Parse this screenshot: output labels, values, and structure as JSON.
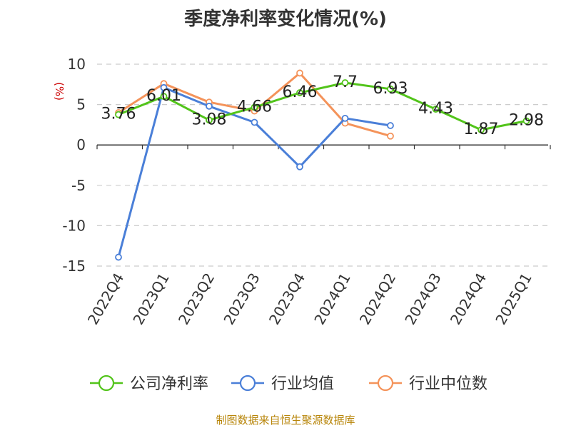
{
  "chart_data": {
    "type": "line",
    "title": "季度净利率变化情况(%)",
    "ylabel": "(%)",
    "xlabel": "",
    "ylim": [
      -15,
      10
    ],
    "yticks": [
      10,
      5,
      0,
      -5,
      -10,
      -15
    ],
    "grid": true,
    "legend_position": "bottom",
    "categories": [
      "2022Q4",
      "2023Q1",
      "2023Q2",
      "2023Q3",
      "2023Q4",
      "2024Q1",
      "2024Q2",
      "2024Q3",
      "2024Q4",
      "2025Q1"
    ],
    "series": [
      {
        "name": "公司净利率",
        "color": "#52c41a",
        "values": [
          3.76,
          6.01,
          3.08,
          4.66,
          6.46,
          7.7,
          6.93,
          4.43,
          1.87,
          2.98
        ],
        "labels": [
          "3.76",
          "6.01",
          "3.08",
          "4.66",
          "6.46",
          "7.7",
          "6.93",
          "4.43",
          "1.87",
          "2.98"
        ]
      },
      {
        "name": "行业均值",
        "color": "#4a7fd8",
        "values": [
          -13.9,
          7.1,
          4.8,
          2.8,
          -2.7,
          3.3,
          2.4,
          null,
          null,
          null
        ]
      },
      {
        "name": "行业中位数",
        "color": "#f4935a",
        "values": [
          4.0,
          7.6,
          5.3,
          4.2,
          8.9,
          2.7,
          1.1,
          null,
          null,
          null
        ]
      }
    ]
  },
  "source": "制图数据来自恒生聚源数据库"
}
